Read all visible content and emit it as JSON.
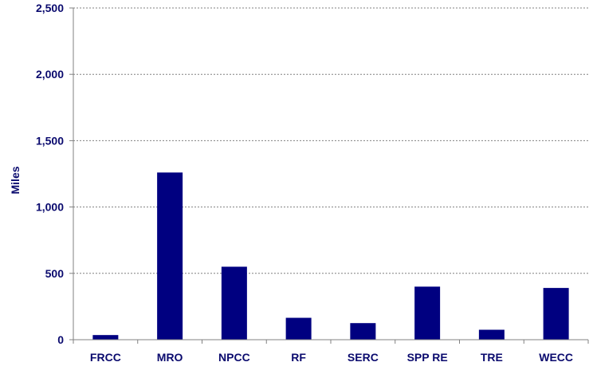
{
  "chart_data": {
    "type": "bar",
    "title": "",
    "xlabel": "",
    "ylabel": "Miles",
    "categories": [
      "FRCC",
      "MRO",
      "NPCC",
      "RF",
      "SERC",
      "SPP RE",
      "TRE",
      "WECC"
    ],
    "values": [
      35,
      1260,
      550,
      165,
      125,
      400,
      75,
      390
    ],
    "ylim": [
      0,
      2500
    ],
    "yticks": [
      0,
      500,
      1000,
      1500,
      2000,
      2500
    ],
    "ytick_labels": [
      "0",
      "500",
      "1,000",
      "1,500",
      "2,000",
      "2,500"
    ],
    "grid": "horizontal dotted",
    "legend": "none",
    "colors": {
      "bar": "#000080",
      "text": "#0a0a6e",
      "axis": "#808080",
      "grid": "#808080"
    }
  }
}
